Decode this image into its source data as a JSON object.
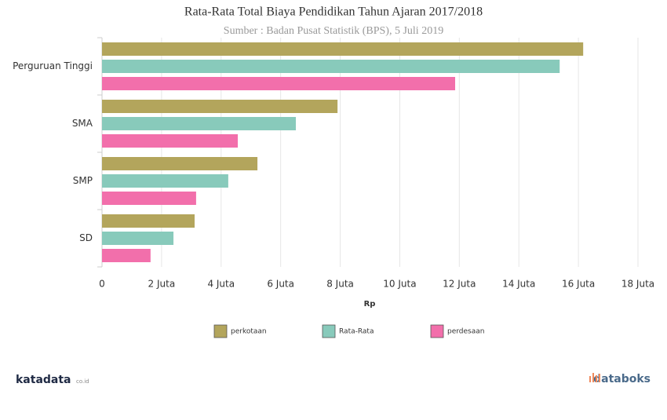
{
  "chart_data": {
    "type": "hbar",
    "title": "Rata-Rata Total Biaya Pendidikan Tahun Ajaran 2017/2018",
    "subtitle": "Sumber : Badan Pusat Statistik (BPS), 5 Juli 2019",
    "x_label": "Rp",
    "categories": [
      "Perguruan Tinggi",
      "SMA",
      "SMP",
      "SD"
    ],
    "series": [
      {
        "name": "perkotaan",
        "color": "#b3a55c",
        "values": [
          16.16,
          7.91,
          5.22,
          3.11
        ]
      },
      {
        "name": "Rata-Rata",
        "color": "#88cabb",
        "values": [
          15.37,
          6.51,
          4.24,
          2.4
        ]
      },
      {
        "name": "perdesaan",
        "color": "#f26fab",
        "values": [
          11.86,
          4.56,
          3.16,
          1.63
        ]
      }
    ],
    "xlim": [
      0,
      18
    ],
    "xticks": [
      0,
      {
        "value": 2,
        "label": "2 Juta"
      },
      {
        "value": 4,
        "label": "4 Juta"
      },
      {
        "value": 6,
        "label": "6 Juta"
      },
      {
        "value": 8,
        "label": "8 Juta"
      },
      {
        "value": 10,
        "label": "10 Juta"
      },
      {
        "value": 12,
        "label": "12 Juta"
      },
      {
        "value": 14,
        "label": "14 Juta"
      },
      {
        "value": 16,
        "label": "16 Juta"
      },
      {
        "value": 18,
        "label": "18 Juta"
      }
    ],
    "grid": true
  },
  "branding": {
    "left": "katadata",
    "left_suffix": "co.id",
    "right": "databoks"
  }
}
